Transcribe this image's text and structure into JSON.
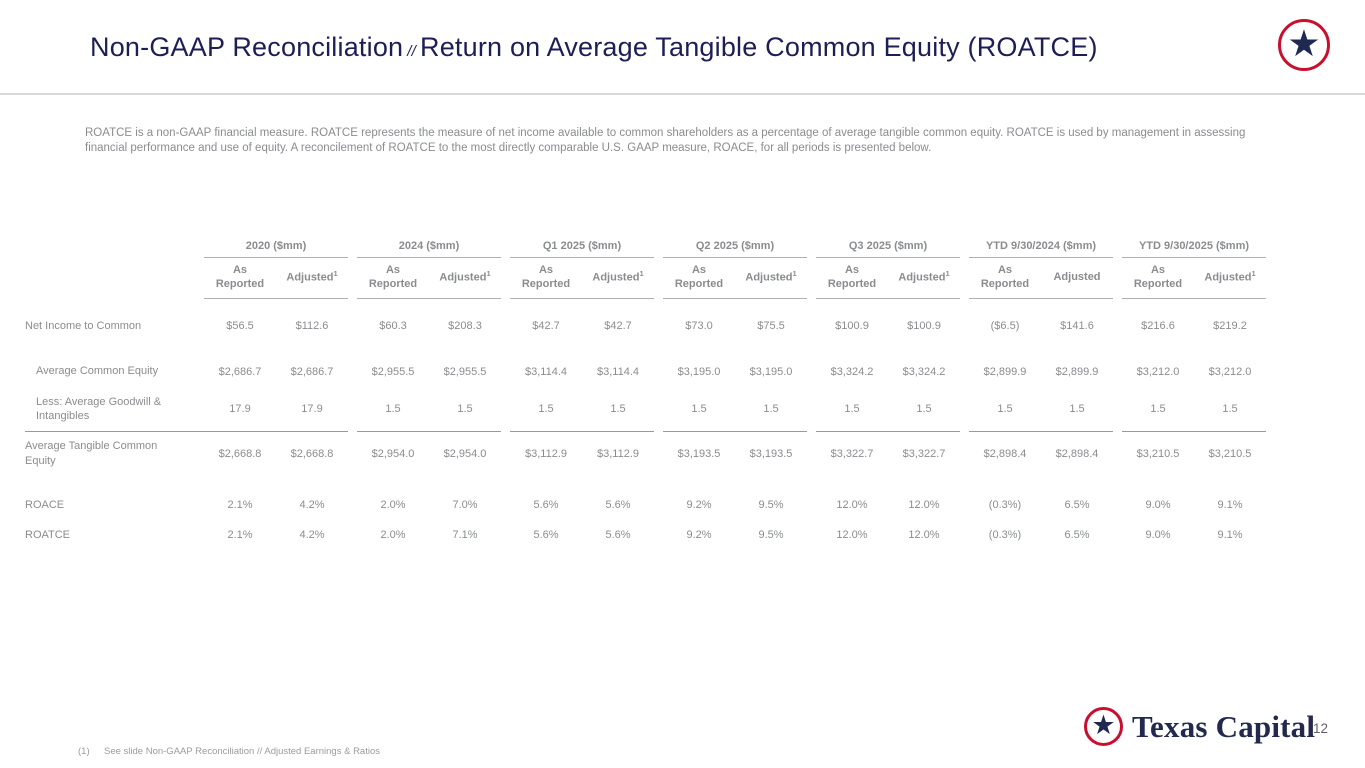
{
  "header": {
    "title_main": "Non-GAAP Reconciliation",
    "title_separator": "//",
    "title_sub": "Return on Average Tangible Common Equity (ROATCE)",
    "logo_star": "★"
  },
  "intro_text": "ROATCE is a non-GAAP financial measure.  ROATCE represents the measure of net income available to common shareholders as a percentage of average tangible common equity.  ROATCE is used by management in assessing financial performance and use of equity.  A reconcilement of ROATCE to the most directly comparable U.S. GAAP measure, ROACE, for all periods is presented below.",
  "table": {
    "groups": [
      {
        "label": "2020 ($mm)",
        "columns": [
          {
            "label": "As Reported"
          },
          {
            "label": "Adjusted",
            "sup": "1"
          }
        ]
      },
      {
        "label": "2024 ($mm)",
        "columns": [
          {
            "label": "As Reported"
          },
          {
            "label": "Adjusted",
            "sup": "1"
          }
        ]
      },
      {
        "label": "Q1 2025 ($mm)",
        "columns": [
          {
            "label": "As Reported"
          },
          {
            "label": "Adjusted",
            "sup": "1"
          }
        ]
      },
      {
        "label": "Q2 2025 ($mm)",
        "columns": [
          {
            "label": "As Reported"
          },
          {
            "label": "Adjusted",
            "sup": "1"
          }
        ]
      },
      {
        "label": "Q3 2025 ($mm)",
        "columns": [
          {
            "label": "As Reported"
          },
          {
            "label": "Adjusted",
            "sup": "1"
          }
        ]
      },
      {
        "label": "YTD 9/30/2024 ($mm)",
        "columns": [
          {
            "label": "As Reported"
          },
          {
            "label": "Adjusted"
          }
        ]
      },
      {
        "label": "YTD 9/30/2025 ($mm)",
        "columns": [
          {
            "label": "As Reported"
          },
          {
            "label": "Adjusted",
            "sup": "1"
          }
        ]
      }
    ],
    "rows": [
      {
        "label": "Net Income to Common",
        "style": "plain",
        "gap_after": true,
        "values": [
          "$56.5",
          "$112.6",
          "$60.3",
          "$208.3",
          "$42.7",
          "$42.7",
          "$73.0",
          "$75.5",
          "$100.9",
          "$100.9",
          "($6.5)",
          "$141.6",
          "$216.6",
          "$219.2"
        ]
      },
      {
        "label": "Average Common Equity",
        "style": "indent",
        "values": [
          "$2,686.7",
          "$2,686.7",
          "$2,955.5",
          "$2,955.5",
          "$3,114.4",
          "$3,114.4",
          "$3,195.0",
          "$3,195.0",
          "$3,324.2",
          "$3,324.2",
          "$2,899.9",
          "$2,899.9",
          "$3,212.0",
          "$3,212.0"
        ]
      },
      {
        "label": "Less: Average Goodwill & Intangibles",
        "style": "indent",
        "values": [
          "17.9",
          "17.9",
          "1.5",
          "1.5",
          "1.5",
          "1.5",
          "1.5",
          "1.5",
          "1.5",
          "1.5",
          "1.5",
          "1.5",
          "1.5",
          "1.5"
        ]
      },
      {
        "label": "Average Tangible Common Equity",
        "style": "total",
        "gap_after": true,
        "values": [
          "$2,668.8",
          "$2,668.8",
          "$2,954.0",
          "$2,954.0",
          "$3,112.9",
          "$3,112.9",
          "$3,193.5",
          "$3,193.5",
          "$3,322.7",
          "$3,322.7",
          "$2,898.4",
          "$2,898.4",
          "$3,210.5",
          "$3,210.5"
        ]
      },
      {
        "label": "ROACE",
        "style": "plain",
        "values": [
          "2.1%",
          "4.2%",
          "2.0%",
          "7.0%",
          "5.6%",
          "5.6%",
          "9.2%",
          "9.5%",
          "12.0%",
          "12.0%",
          "(0.3%)",
          "6.5%",
          "9.0%",
          "9.1%"
        ]
      },
      {
        "label": "ROATCE",
        "style": "plain",
        "values": [
          "2.1%",
          "4.2%",
          "2.0%",
          "7.1%",
          "5.6%",
          "5.6%",
          "9.2%",
          "9.5%",
          "12.0%",
          "12.0%",
          "(0.3%)",
          "6.5%",
          "9.0%",
          "9.1%"
        ]
      }
    ]
  },
  "footer": {
    "footnote_marker": "(1)",
    "footnote_text": "See slide Non-GAAP Reconciliation // Adjusted Earnings & Ratios",
    "logo_star": "★",
    "logo_text": "Texas Capital",
    "page_number": "12"
  },
  "colors": {
    "title_navy": "#1e1e56",
    "brand_red": "#c8102e",
    "star_navy": "#1e2a52",
    "table_text_gray": "#8a8c8f",
    "rule_gray": "#b0b0b0",
    "header_rule_gray": "#d9d9d9"
  }
}
